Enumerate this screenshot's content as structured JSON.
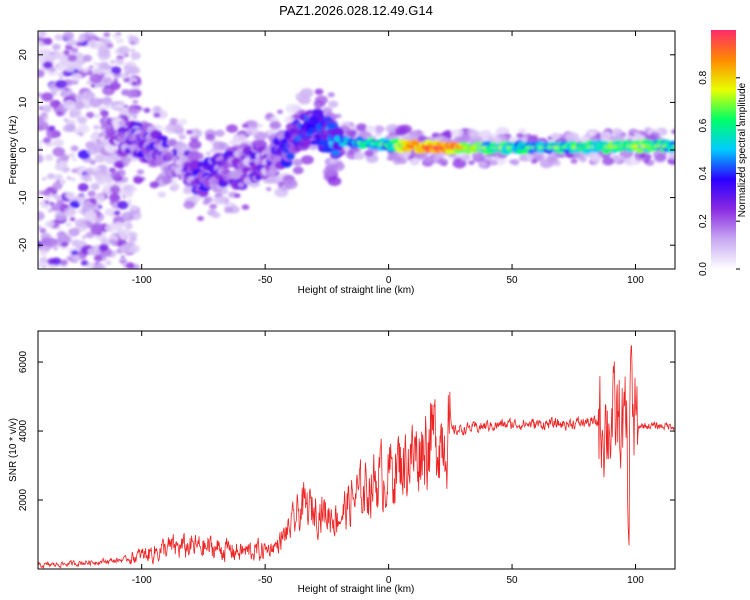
{
  "figure": {
    "title": "PAZ1.2026.028.12.49.G14"
  },
  "chart_data": [
    {
      "type": "heatmap",
      "title": "PAZ1.2026.028.12.49.G14",
      "xlabel": "Height of straight line (km)",
      "ylabel": "Frequency (Hz)",
      "xlim": [
        -142,
        116
      ],
      "ylim": [
        -25,
        25
      ],
      "xticks": [
        -100,
        -50,
        0,
        50,
        100
      ],
      "yticks": [
        -20,
        -10,
        0,
        10,
        20
      ],
      "xtick_labels": [
        "-100",
        "-50",
        "0",
        "50",
        "100"
      ],
      "ytick_labels": [
        "-20",
        "-10",
        "0",
        "10",
        "20"
      ],
      "colorbar": {
        "label": "Normalized spectral amplitude",
        "range": [
          0,
          1
        ],
        "ticks": [
          "0.0",
          "0.2",
          "0.4",
          "0.6",
          "0.8"
        ],
        "colors": [
          "#ffffff",
          "#c7a8f2",
          "#8a2be2",
          "#2a00ff",
          "#00ccff",
          "#00ff66",
          "#e8ff00",
          "#ff8a00",
          "#ff2a6a"
        ]
      },
      "ridge_frequency": {
        "x": [
          -110,
          -100,
          -90,
          -80,
          -75,
          -70,
          -60,
          -50,
          -40,
          -35,
          -30,
          -25,
          -20,
          -10,
          0,
          10,
          20,
          40,
          60,
          80,
          100,
          116
        ],
        "y": [
          3,
          2,
          -1,
          -4,
          -6,
          -5,
          -4,
          -2,
          1,
          4,
          5,
          3,
          2,
          1.5,
          1,
          0.8,
          0.5,
          0.5,
          0.5,
          0.6,
          0.8,
          0.8
        ]
      },
      "ridge_amplitude": {
        "x": [
          -110,
          -100,
          -90,
          -80,
          -75,
          -70,
          -60,
          -50,
          -40,
          -35,
          -30,
          -25,
          -20,
          -10,
          0,
          10,
          20,
          40,
          60,
          80,
          100,
          116
        ],
        "y": [
          0.15,
          0.25,
          0.2,
          0.2,
          0.3,
          0.2,
          0.2,
          0.2,
          0.3,
          0.35,
          0.3,
          0.35,
          0.4,
          0.5,
          0.5,
          0.8,
          0.9,
          0.55,
          0.5,
          0.55,
          0.6,
          0.5
        ]
      }
    },
    {
      "type": "line",
      "xlabel": "Height of straight line (km)",
      "ylabel": "SNR (10 * v/v)",
      "xlim": [
        -142,
        116
      ],
      "ylim": [
        0,
        6900
      ],
      "xticks": [
        -100,
        -50,
        0,
        50,
        100
      ],
      "yticks": [
        2000,
        4000,
        6000
      ],
      "xtick_labels": [
        "-100",
        "-50",
        "0",
        "50",
        "100"
      ],
      "ytick_labels": [
        "2000",
        "4000",
        "6000"
      ],
      "color": "#ee2222",
      "series": [
        {
          "name": "SNR",
          "x": [
            -142,
            -130,
            -120,
            -110,
            -105,
            -100,
            -90,
            -80,
            -70,
            -60,
            -50,
            -45,
            -40,
            -35,
            -30,
            -25,
            -20,
            -15,
            -10,
            -5,
            0,
            5,
            10,
            15,
            20,
            25,
            30,
            40,
            50,
            60,
            70,
            80,
            85,
            90,
            93,
            95,
            97,
            99,
            100,
            105,
            110,
            116
          ],
          "y": [
            100,
            150,
            200,
            250,
            300,
            400,
            600,
            650,
            600,
            500,
            550,
            700,
            1200,
            1800,
            1700,
            1600,
            1500,
            2000,
            2300,
            2600,
            2800,
            3100,
            3300,
            3700,
            3900,
            4000,
            4050,
            4150,
            4200,
            4200,
            4200,
            4250,
            4250,
            4250,
            4200,
            4100,
            4000,
            4150,
            4150,
            4150,
            4150,
            4150
          ]
        }
      ]
    }
  ]
}
